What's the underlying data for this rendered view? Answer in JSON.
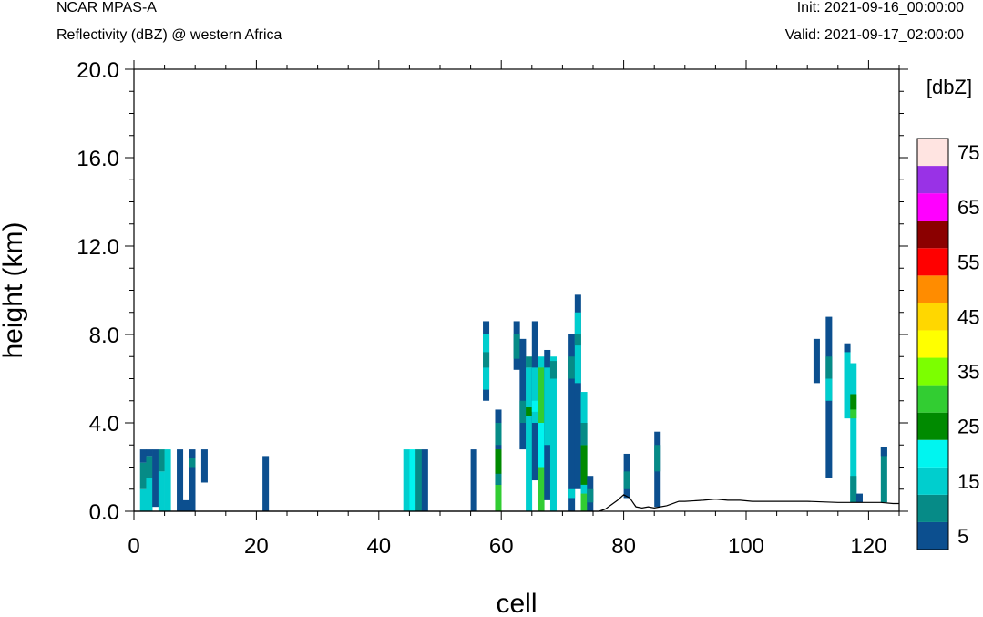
{
  "header": {
    "model": "NCAR MPAS-A",
    "subtitle": "Reflectivity (dBZ) @ western Africa",
    "init": "Init: 2021-09-16_00:00:00",
    "valid": "Valid: 2021-09-17_02:00:00"
  },
  "chart_data": {
    "type": "heatmap",
    "xlabel": "cell",
    "ylabel": "height (km)",
    "xlim": [
      0,
      125
    ],
    "ylim": [
      0,
      20
    ],
    "xticks": [
      0,
      20,
      40,
      60,
      80,
      100,
      120
    ],
    "yticks": [
      0,
      4,
      8,
      12,
      16,
      20
    ],
    "ytick_labels": [
      "0.0",
      "4.0",
      "8.0",
      "12.0",
      "16.0",
      "20.0"
    ],
    "colorbar": {
      "title": "[dbZ]",
      "bounds": [
        0,
        10,
        15,
        20,
        25,
        30,
        35,
        40,
        45,
        50,
        55,
        60,
        65,
        70,
        75
      ],
      "labels": [
        "5",
        "15",
        "25",
        "35",
        "45",
        "55",
        "65",
        "75"
      ],
      "colors": [
        "#0c4f8f",
        "#068b87",
        "#00cece",
        "#00f5f0",
        "#008a00",
        "#32cd32",
        "#7cff00",
        "#ffff00",
        "#ffd700",
        "#ff8c00",
        "#ff0000",
        "#8b0000",
        "#ff00ff",
        "#9932e6",
        "#ffe4e1"
      ]
    },
    "cells": [
      {
        "x": 1,
        "y0": 0,
        "y1": 1,
        "dbz": 15
      },
      {
        "x": 1,
        "y0": 1,
        "y1": 2.2,
        "dbz": 10
      },
      {
        "x": 1,
        "y0": 2.2,
        "y1": 2.8,
        "dbz": 5
      },
      {
        "x": 2,
        "y0": 0,
        "y1": 1.5,
        "dbz": 15
      },
      {
        "x": 2,
        "y0": 1.5,
        "y1": 2.5,
        "dbz": 10
      },
      {
        "x": 2,
        "y0": 2.5,
        "y1": 2.8,
        "dbz": 5
      },
      {
        "x": 3,
        "y0": 0.2,
        "y1": 2.8,
        "dbz": 5
      },
      {
        "x": 4,
        "y0": 0,
        "y1": 1.8,
        "dbz": 15
      },
      {
        "x": 4,
        "y0": 1.8,
        "y1": 2.8,
        "dbz": 10
      },
      {
        "x": 5,
        "y0": 0,
        "y1": 2.8,
        "dbz": 15
      },
      {
        "x": 7,
        "y0": 0,
        "y1": 2.8,
        "dbz": 5
      },
      {
        "x": 8,
        "y0": 0,
        "y1": 0.5,
        "dbz": 5
      },
      {
        "x": 9,
        "y0": 0,
        "y1": 2.8,
        "dbz": 5
      },
      {
        "x": 9,
        "y0": 2,
        "y1": 2.4,
        "dbz": 10
      },
      {
        "x": 11,
        "y0": 1.3,
        "y1": 2.8,
        "dbz": 5
      },
      {
        "x": 21,
        "y0": 0,
        "y1": 2.5,
        "dbz": 5
      },
      {
        "x": 44,
        "y0": 0,
        "y1": 2.8,
        "dbz": 15
      },
      {
        "x": 45,
        "y0": 0,
        "y1": 2.8,
        "dbz": 20
      },
      {
        "x": 46,
        "y0": 0,
        "y1": 2.8,
        "dbz": 10
      },
      {
        "x": 47,
        "y0": 0,
        "y1": 2.8,
        "dbz": 5
      },
      {
        "x": 55,
        "y0": 0,
        "y1": 2.8,
        "dbz": 5
      },
      {
        "x": 57,
        "y0": 5.0,
        "y1": 8.6,
        "dbz": 5
      },
      {
        "x": 57,
        "y0": 5.5,
        "y1": 8.0,
        "dbz": 15
      },
      {
        "x": 57,
        "y0": 6.5,
        "y1": 7.2,
        "dbz": 10
      },
      {
        "x": 59,
        "y0": 0,
        "y1": 4.6,
        "dbz": 5
      },
      {
        "x": 59,
        "y0": 0,
        "y1": 1.2,
        "dbz": 30
      },
      {
        "x": 59,
        "y0": 1.2,
        "y1": 1.7,
        "dbz": 10
      },
      {
        "x": 59,
        "y0": 1.7,
        "y1": 2.8,
        "dbz": 25
      },
      {
        "x": 59,
        "y0": 3.0,
        "y1": 4.0,
        "dbz": 10
      },
      {
        "x": 62,
        "y0": 6.4,
        "y1": 8.6,
        "dbz": 5
      },
      {
        "x": 62,
        "y0": 6.9,
        "y1": 8.0,
        "dbz": 10
      },
      {
        "x": 63,
        "y0": 2.8,
        "y1": 7.8,
        "dbz": 5
      },
      {
        "x": 63,
        "y0": 4.0,
        "y1": 5.0,
        "dbz": 10
      },
      {
        "x": 64,
        "y0": 0,
        "y1": 6.5,
        "dbz": 15
      },
      {
        "x": 64,
        "y0": 4.3,
        "y1": 4.7,
        "dbz": 25
      },
      {
        "x": 64,
        "y0": 6.5,
        "y1": 7.0,
        "dbz": 10
      },
      {
        "x": 65,
        "y0": 1.4,
        "y1": 8.6,
        "dbz": 5
      },
      {
        "x": 65,
        "y0": 4.0,
        "y1": 6.5,
        "dbz": 15
      },
      {
        "x": 65,
        "y0": 4.5,
        "y1": 5.0,
        "dbz": 20
      },
      {
        "x": 66,
        "y0": 0,
        "y1": 7.0,
        "dbz": 15
      },
      {
        "x": 66,
        "y0": 0,
        "y1": 6.5,
        "dbz": 30
      },
      {
        "x": 66,
        "y0": 2.0,
        "y1": 4.0,
        "dbz": 20
      },
      {
        "x": 67,
        "y0": 0.5,
        "y1": 7.3,
        "dbz": 5
      },
      {
        "x": 67,
        "y0": 3.0,
        "y1": 6.5,
        "dbz": 15
      },
      {
        "x": 68,
        "y0": 0,
        "y1": 7.0,
        "dbz": 15
      },
      {
        "x": 68,
        "y0": 6.0,
        "y1": 6.8,
        "dbz": 10
      },
      {
        "x": 71,
        "y0": 0,
        "y1": 8.0,
        "dbz": 5
      },
      {
        "x": 71,
        "y0": 0.6,
        "y1": 1.0,
        "dbz": 15
      },
      {
        "x": 71,
        "y0": 6.0,
        "y1": 7.0,
        "dbz": 10
      },
      {
        "x": 72,
        "y0": 1.0,
        "y1": 9.8,
        "dbz": 5
      },
      {
        "x": 72,
        "y0": 5.8,
        "y1": 9.0,
        "dbz": 15
      },
      {
        "x": 72,
        "y0": 7.5,
        "y1": 8.0,
        "dbz": 10
      },
      {
        "x": 73,
        "y0": 0,
        "y1": 5.4,
        "dbz": 15
      },
      {
        "x": 73,
        "y0": 0,
        "y1": 0.8,
        "dbz": 30
      },
      {
        "x": 73,
        "y0": 1.2,
        "y1": 3.0,
        "dbz": 25
      },
      {
        "x": 73,
        "y0": 3.0,
        "y1": 4.0,
        "dbz": 10
      },
      {
        "x": 74,
        "y0": 0,
        "y1": 1.6,
        "dbz": 5
      },
      {
        "x": 74,
        "y0": 0.4,
        "y1": 1.0,
        "dbz": 10
      },
      {
        "x": 80,
        "y0": 0.6,
        "y1": 2.6,
        "dbz": 5
      },
      {
        "x": 80,
        "y0": 1.0,
        "y1": 1.8,
        "dbz": 10
      },
      {
        "x": 85,
        "y0": 0.2,
        "y1": 3.6,
        "dbz": 5
      },
      {
        "x": 85,
        "y0": 1.8,
        "y1": 3.0,
        "dbz": 10
      },
      {
        "x": 111,
        "y0": 5.8,
        "y1": 7.8,
        "dbz": 5
      },
      {
        "x": 113,
        "y0": 1.5,
        "y1": 8.8,
        "dbz": 5
      },
      {
        "x": 113,
        "y0": 5.0,
        "y1": 6.0,
        "dbz": 15
      },
      {
        "x": 113,
        "y0": 6.0,
        "y1": 7.0,
        "dbz": 10
      },
      {
        "x": 116,
        "y0": 4.2,
        "y1": 7.5,
        "dbz": 15
      },
      {
        "x": 116,
        "y0": 7.2,
        "y1": 7.6,
        "dbz": 5
      },
      {
        "x": 117,
        "y0": 0.4,
        "y1": 6.7,
        "dbz": 15
      },
      {
        "x": 117,
        "y0": 4.6,
        "y1": 5.3,
        "dbz": 25
      },
      {
        "x": 117,
        "y0": 4.2,
        "y1": 4.6,
        "dbz": 30
      },
      {
        "x": 117,
        "y0": 0.4,
        "y1": 1.6,
        "dbz": 10
      },
      {
        "x": 118,
        "y0": 0.4,
        "y1": 0.8,
        "dbz": 5
      },
      {
        "x": 122,
        "y0": 0.4,
        "y1": 2.9,
        "dbz": 10
      },
      {
        "x": 122,
        "y0": 2.5,
        "y1": 2.9,
        "dbz": 5
      }
    ],
    "terrain": {
      "x": [
        0,
        20,
        40,
        60,
        76,
        77,
        78,
        79,
        80,
        81,
        82,
        83,
        84,
        85,
        86,
        87,
        88,
        89,
        90,
        93,
        95,
        97,
        99,
        101,
        103,
        105,
        110,
        115,
        118,
        120,
        122,
        124,
        125
      ],
      "y": [
        0,
        0,
        0,
        0,
        0,
        0.1,
        0.3,
        0.5,
        0.75,
        0.6,
        0.2,
        0.15,
        0.2,
        0.15,
        0.2,
        0.25,
        0.35,
        0.45,
        0.45,
        0.5,
        0.55,
        0.5,
        0.5,
        0.45,
        0.45,
        0.45,
        0.45,
        0.4,
        0.4,
        0.4,
        0.4,
        0.35,
        0.35
      ]
    }
  }
}
